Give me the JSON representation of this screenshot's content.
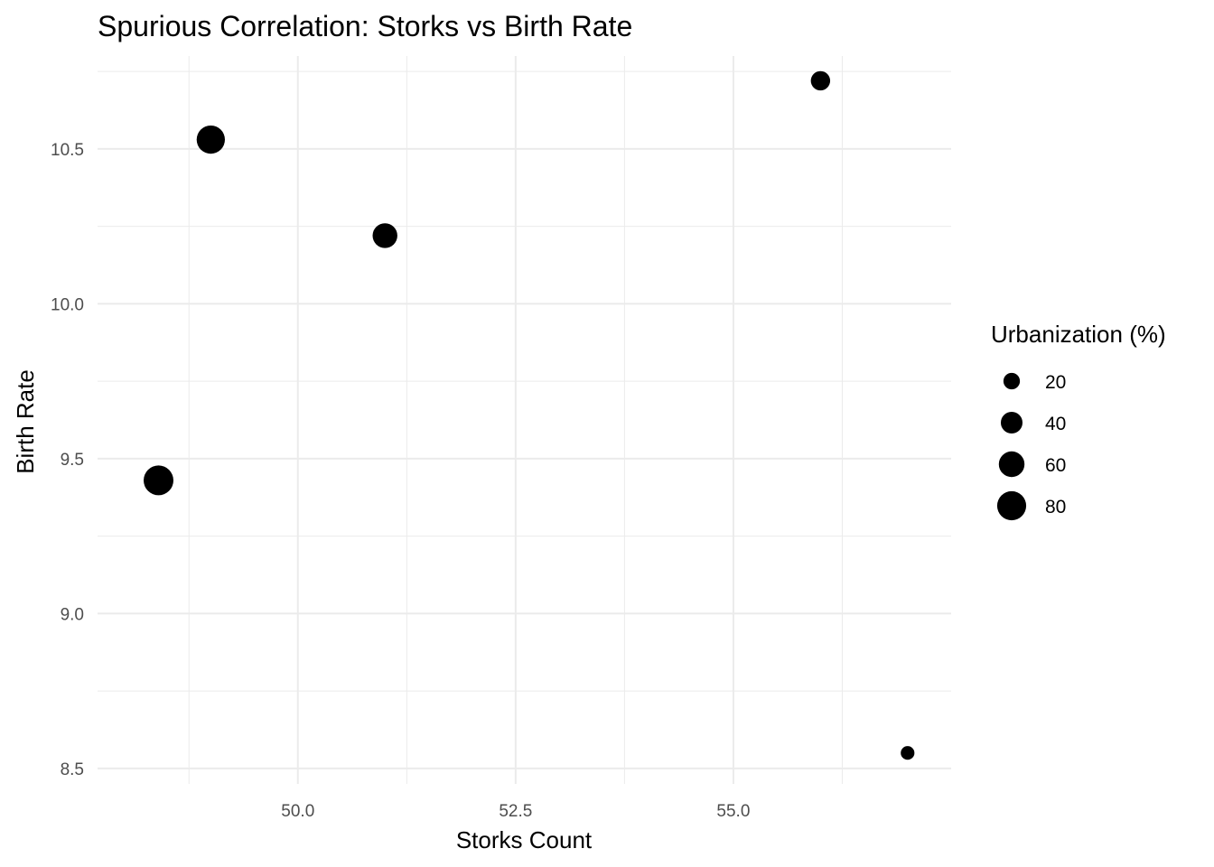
{
  "chart_data": {
    "type": "scatter",
    "title": "Spurious Correlation: Storks vs Birth Rate",
    "xlabel": "Storks Count",
    "ylabel": "Birth Rate",
    "xlim": [
      47.7,
      57.5
    ],
    "ylim": [
      8.45,
      10.8
    ],
    "x_ticks": [
      50.0,
      52.5,
      55.0
    ],
    "x_tick_labels": [
      "50.0",
      "52.5",
      "55.0"
    ],
    "y_ticks": [
      8.5,
      9.0,
      9.5,
      10.0,
      10.5
    ],
    "y_tick_labels": [
      "8.5",
      "9.0",
      "9.5",
      "10.0",
      "10.5"
    ],
    "grid": true,
    "point_color": "#000000",
    "size_variable": "Urbanization (%)",
    "points": [
      {
        "x": 48.4,
        "y": 9.43,
        "size": 85
      },
      {
        "x": 49.0,
        "y": 10.53,
        "size": 75
      },
      {
        "x": 51.0,
        "y": 10.22,
        "size": 55
      },
      {
        "x": 56.0,
        "y": 10.72,
        "size": 30
      },
      {
        "x": 57.0,
        "y": 8.55,
        "size": 12
      }
    ],
    "legend": {
      "title": "Urbanization (%)",
      "placement": "right",
      "entries": [
        {
          "value": 20,
          "label": "20"
        },
        {
          "value": 40,
          "label": "40"
        },
        {
          "value": 60,
          "label": "60"
        },
        {
          "value": 80,
          "label": "80"
        }
      ]
    }
  }
}
